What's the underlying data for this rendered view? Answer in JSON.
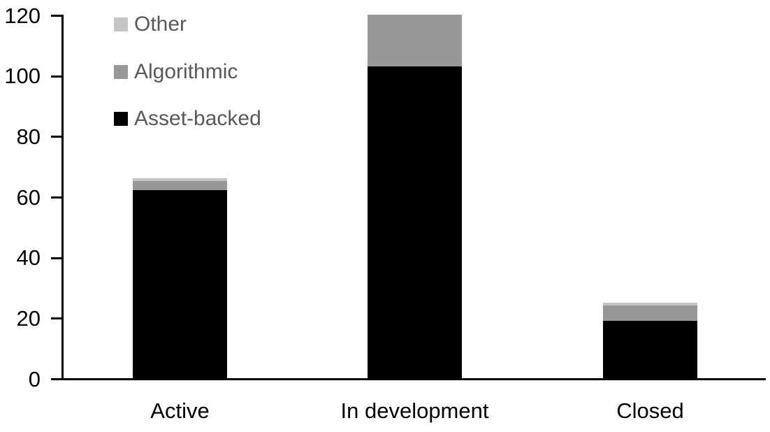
{
  "chart_data": {
    "type": "bar",
    "stacked": true,
    "title": "",
    "categories": [
      "Active",
      "In development",
      "Closed"
    ],
    "series": [
      {
        "name": "Asset-backed",
        "color": "#000000",
        "values": [
          62,
          103,
          19
        ]
      },
      {
        "name": "Algorithmic",
        "color": "#989898",
        "values": [
          3,
          17,
          5
        ]
      },
      {
        "name": "Other",
        "color": "#c5c5c5",
        "values": [
          1,
          0,
          1
        ]
      }
    ],
    "stack_order_bottom_to_top": [
      "Asset-backed",
      "Algorithmic",
      "Other"
    ],
    "legend": {
      "position": "top-left",
      "order_top_to_bottom": [
        "Other",
        "Algorithmic",
        "Asset-backed"
      ],
      "text_color": "#595959"
    },
    "y_axis": {
      "min": 0,
      "max": 120,
      "tick_step": 20,
      "tick_labels": [
        "0",
        "20",
        "40",
        "60",
        "80",
        "100",
        "120"
      ]
    },
    "grid": false,
    "axis_color": "#000000",
    "background_color": "#ffffff",
    "xlabel": "",
    "ylabel": ""
  }
}
